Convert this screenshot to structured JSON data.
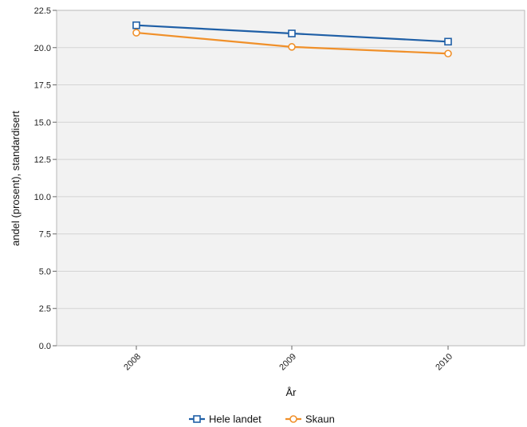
{
  "chart_data": {
    "type": "line",
    "categories": [
      "2008",
      "2009",
      "2010"
    ],
    "series": [
      {
        "name": "Hele landet",
        "values": [
          21.5,
          20.95,
          20.4
        ],
        "color": "#1f5fa6",
        "marker": "square"
      },
      {
        "name": "Skaun",
        "values": [
          21.0,
          20.05,
          19.6
        ],
        "color": "#f0902a",
        "marker": "circle"
      }
    ],
    "xlabel": "År",
    "ylabel": "andel (prosent), standardisert",
    "ylim": [
      0,
      22.5
    ],
    "yticks": [
      "0.0",
      "2.5",
      "5.0",
      "7.5",
      "10.0",
      "12.5",
      "15.0",
      "17.5",
      "20.0",
      "22.5"
    ],
    "grid": true,
    "legend": "bottom-center",
    "plot_background": "#f2f2f2",
    "grid_color": "#d4d4d4"
  }
}
